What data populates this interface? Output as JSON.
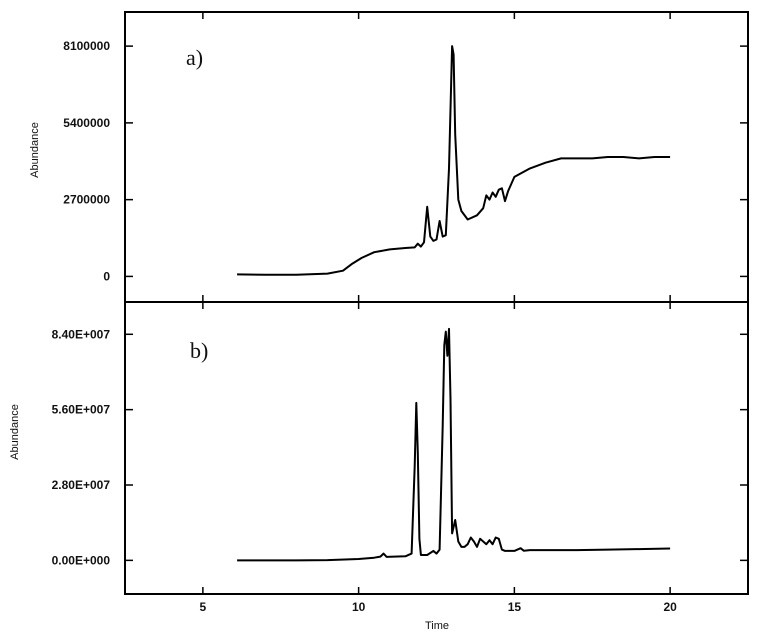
{
  "chart_data": [
    {
      "type": "line",
      "panel_label": "a)",
      "xlabel": "",
      "ylabel": "Abundance",
      "xlim": [
        2.5,
        22.5
      ],
      "ylim": [
        -900000,
        9300000
      ],
      "yticks": [
        0,
        2700000,
        5400000,
        8100000
      ],
      "ytick_labels": [
        "0",
        "2700000",
        "5400000",
        "8100000"
      ],
      "x": [
        6.1,
        7,
        8,
        9,
        9.5,
        9.8,
        10.1,
        10.5,
        11,
        11.5,
        11.8,
        11.9,
        12.0,
        12.1,
        12.2,
        12.3,
        12.4,
        12.5,
        12.6,
        12.7,
        12.8,
        12.9,
        13.0,
        13.05,
        13.1,
        13.2,
        13.3,
        13.5,
        13.8,
        14.0,
        14.1,
        14.2,
        14.3,
        14.4,
        14.5,
        14.6,
        14.7,
        14.8,
        15.0,
        15.5,
        16.0,
        16.5,
        17.0,
        17.5,
        18.0,
        18.5,
        19.0,
        19.5,
        20.0
      ],
      "y": [
        70000,
        60000,
        60000,
        100000,
        200000,
        450000,
        650000,
        850000,
        950000,
        1000000,
        1020000,
        1150000,
        1050000,
        1200000,
        2450000,
        1400000,
        1250000,
        1300000,
        1950000,
        1400000,
        1450000,
        3800000,
        8100000,
        7800000,
        5000000,
        2700000,
        2300000,
        2000000,
        2150000,
        2400000,
        2850000,
        2700000,
        2950000,
        2800000,
        3050000,
        3100000,
        2650000,
        3000000,
        3500000,
        3800000,
        4000000,
        4150000,
        4150000,
        4150000,
        4200000,
        4200000,
        4150000,
        4200000,
        4200000
      ]
    },
    {
      "type": "line",
      "panel_label": "b)",
      "xlabel": "Time",
      "ylabel": "Abundance",
      "xlim": [
        2.5,
        22.5
      ],
      "xticks": [
        5,
        10,
        15,
        20
      ],
      "xtick_labels": [
        "5",
        "10",
        "15",
        "20"
      ],
      "ylim": [
        -12500000,
        96000000
      ],
      "yticks": [
        0,
        28000000,
        56000000,
        84000000
      ],
      "ytick_labels": [
        "0.00E+000",
        "2.80E+007",
        "5.60E+007",
        "8.40E+007"
      ],
      "x": [
        6.1,
        7,
        8,
        9,
        10,
        10.5,
        10.7,
        10.8,
        10.9,
        11.5,
        11.7,
        11.8,
        11.85,
        11.9,
        11.95,
        12.0,
        12.2,
        12.4,
        12.5,
        12.6,
        12.7,
        12.75,
        12.8,
        12.85,
        12.9,
        12.95,
        13.0,
        13.1,
        13.2,
        13.3,
        13.4,
        13.5,
        13.6,
        13.7,
        13.8,
        13.9,
        14.0,
        14.1,
        14.2,
        14.3,
        14.4,
        14.5,
        14.6,
        14.7,
        15.0,
        15.2,
        15.3,
        15.5,
        16,
        17,
        18,
        19,
        20
      ],
      "y": [
        0,
        0,
        0,
        100000,
        500000,
        1000000,
        1400000,
        2500000,
        1300000,
        1500000,
        2500000,
        35000000,
        58500000,
        40000000,
        8000000,
        2000000,
        2000000,
        3500000,
        2500000,
        4000000,
        50000000,
        80000000,
        85000000,
        76000000,
        86000000,
        60000000,
        10000000,
        15000000,
        7000000,
        5000000,
        5000000,
        6000000,
        8500000,
        7000000,
        5000000,
        8000000,
        7000000,
        6000000,
        7500000,
        6000000,
        8500000,
        8000000,
        4000000,
        3500000,
        3500000,
        4500000,
        3600000,
        3800000,
        3800000,
        3800000,
        4000000,
        4200000,
        4400000
      ]
    }
  ]
}
